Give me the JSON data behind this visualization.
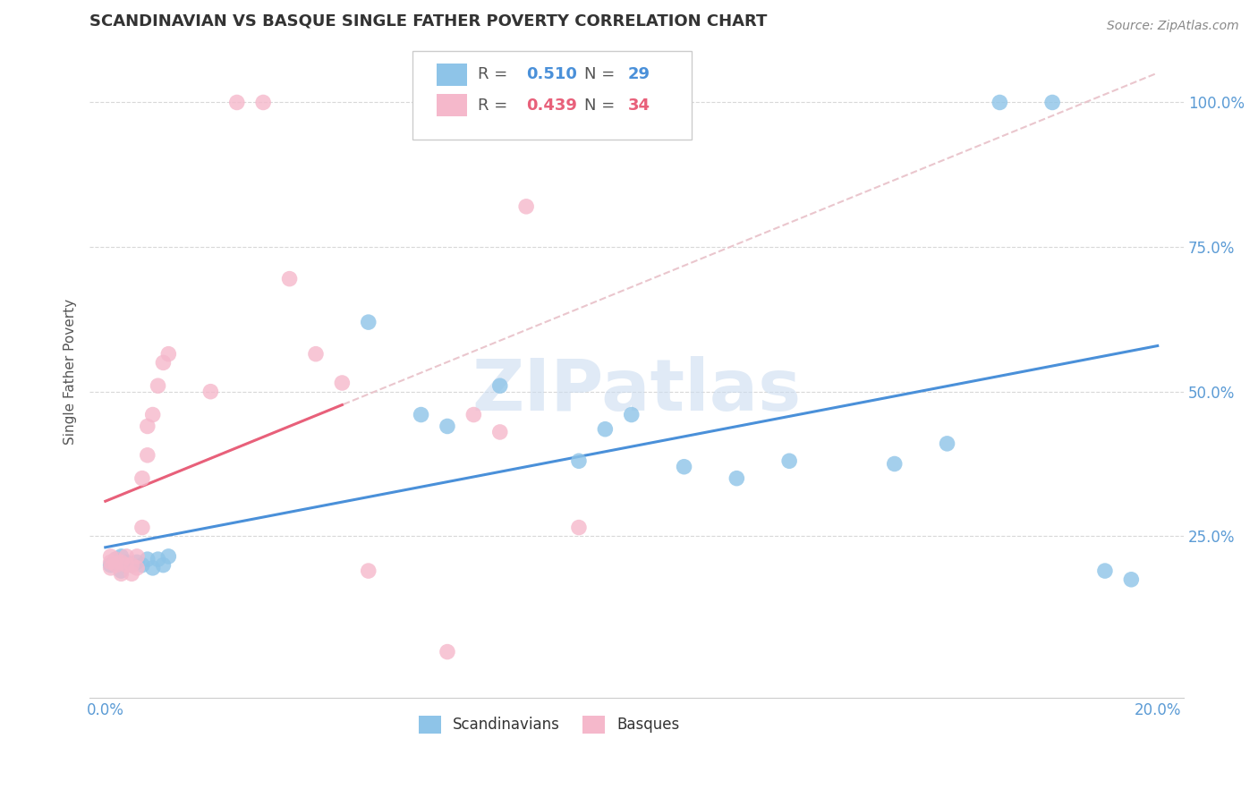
{
  "title": "SCANDINAVIAN VS BASQUE SINGLE FATHER POVERTY CORRELATION CHART",
  "source": "Source: ZipAtlas.com",
  "ylabel": "Single Father Poverty",
  "legend_blue_R": "0.510",
  "legend_blue_N": "29",
  "legend_pink_R": "0.439",
  "legend_pink_N": "34",
  "blue_color": "#8ec4e8",
  "pink_color": "#f5b8cb",
  "blue_line_color": "#4a90d9",
  "pink_line_color": "#e8607a",
  "dashed_line_color": "#e8c0c8",
  "watermark_color": "#ccddf0",
  "grid_color": "#d8d8d8",
  "title_color": "#333333",
  "tick_color": "#5b9bd5",
  "ylabel_color": "#555555",
  "source_color": "#888888",
  "scandinavian_x": [
    0.001,
    0.002,
    0.003,
    0.003,
    0.004,
    0.005,
    0.006,
    0.007,
    0.008,
    0.009,
    0.01,
    0.011,
    0.012,
    0.05,
    0.06,
    0.065,
    0.075,
    0.09,
    0.095,
    0.1,
    0.11,
    0.12,
    0.13,
    0.15,
    0.16,
    0.17,
    0.18,
    0.19,
    0.195
  ],
  "scandinavian_y": [
    0.2,
    0.21,
    0.19,
    0.215,
    0.205,
    0.2,
    0.205,
    0.2,
    0.21,
    0.195,
    0.21,
    0.2,
    0.215,
    0.62,
    0.46,
    0.44,
    0.51,
    0.38,
    0.435,
    0.46,
    0.37,
    0.35,
    0.38,
    0.375,
    0.41,
    1.0,
    1.0,
    0.19,
    0.175
  ],
  "basque_x": [
    0.001,
    0.001,
    0.001,
    0.002,
    0.002,
    0.003,
    0.003,
    0.004,
    0.004,
    0.005,
    0.005,
    0.006,
    0.006,
    0.007,
    0.007,
    0.008,
    0.008,
    0.009,
    0.01,
    0.011,
    0.012,
    0.02,
    0.025,
    0.03,
    0.035,
    0.04,
    0.045,
    0.05,
    0.065,
    0.07,
    0.075,
    0.08,
    0.09,
    0.095
  ],
  "basque_y": [
    0.215,
    0.205,
    0.195,
    0.21,
    0.2,
    0.205,
    0.185,
    0.215,
    0.2,
    0.2,
    0.185,
    0.215,
    0.195,
    0.265,
    0.35,
    0.39,
    0.44,
    0.46,
    0.51,
    0.55,
    0.565,
    0.5,
    1.0,
    1.0,
    0.695,
    0.565,
    0.515,
    0.19,
    0.05,
    0.46,
    0.43,
    0.82,
    0.265,
    1.0
  ],
  "xlim": [
    0.0,
    0.2
  ],
  "ylim": [
    -0.03,
    1.1
  ],
  "yticks": [
    0.0,
    0.25,
    0.5,
    0.75,
    1.0
  ],
  "ytick_labels": [
    "",
    "25.0%",
    "50.0%",
    "75.0%",
    "100.0%"
  ],
  "xtick_labels_show": [
    "0.0%",
    "",
    "",
    "",
    "",
    "",
    "",
    "",
    "",
    "20.0%"
  ]
}
